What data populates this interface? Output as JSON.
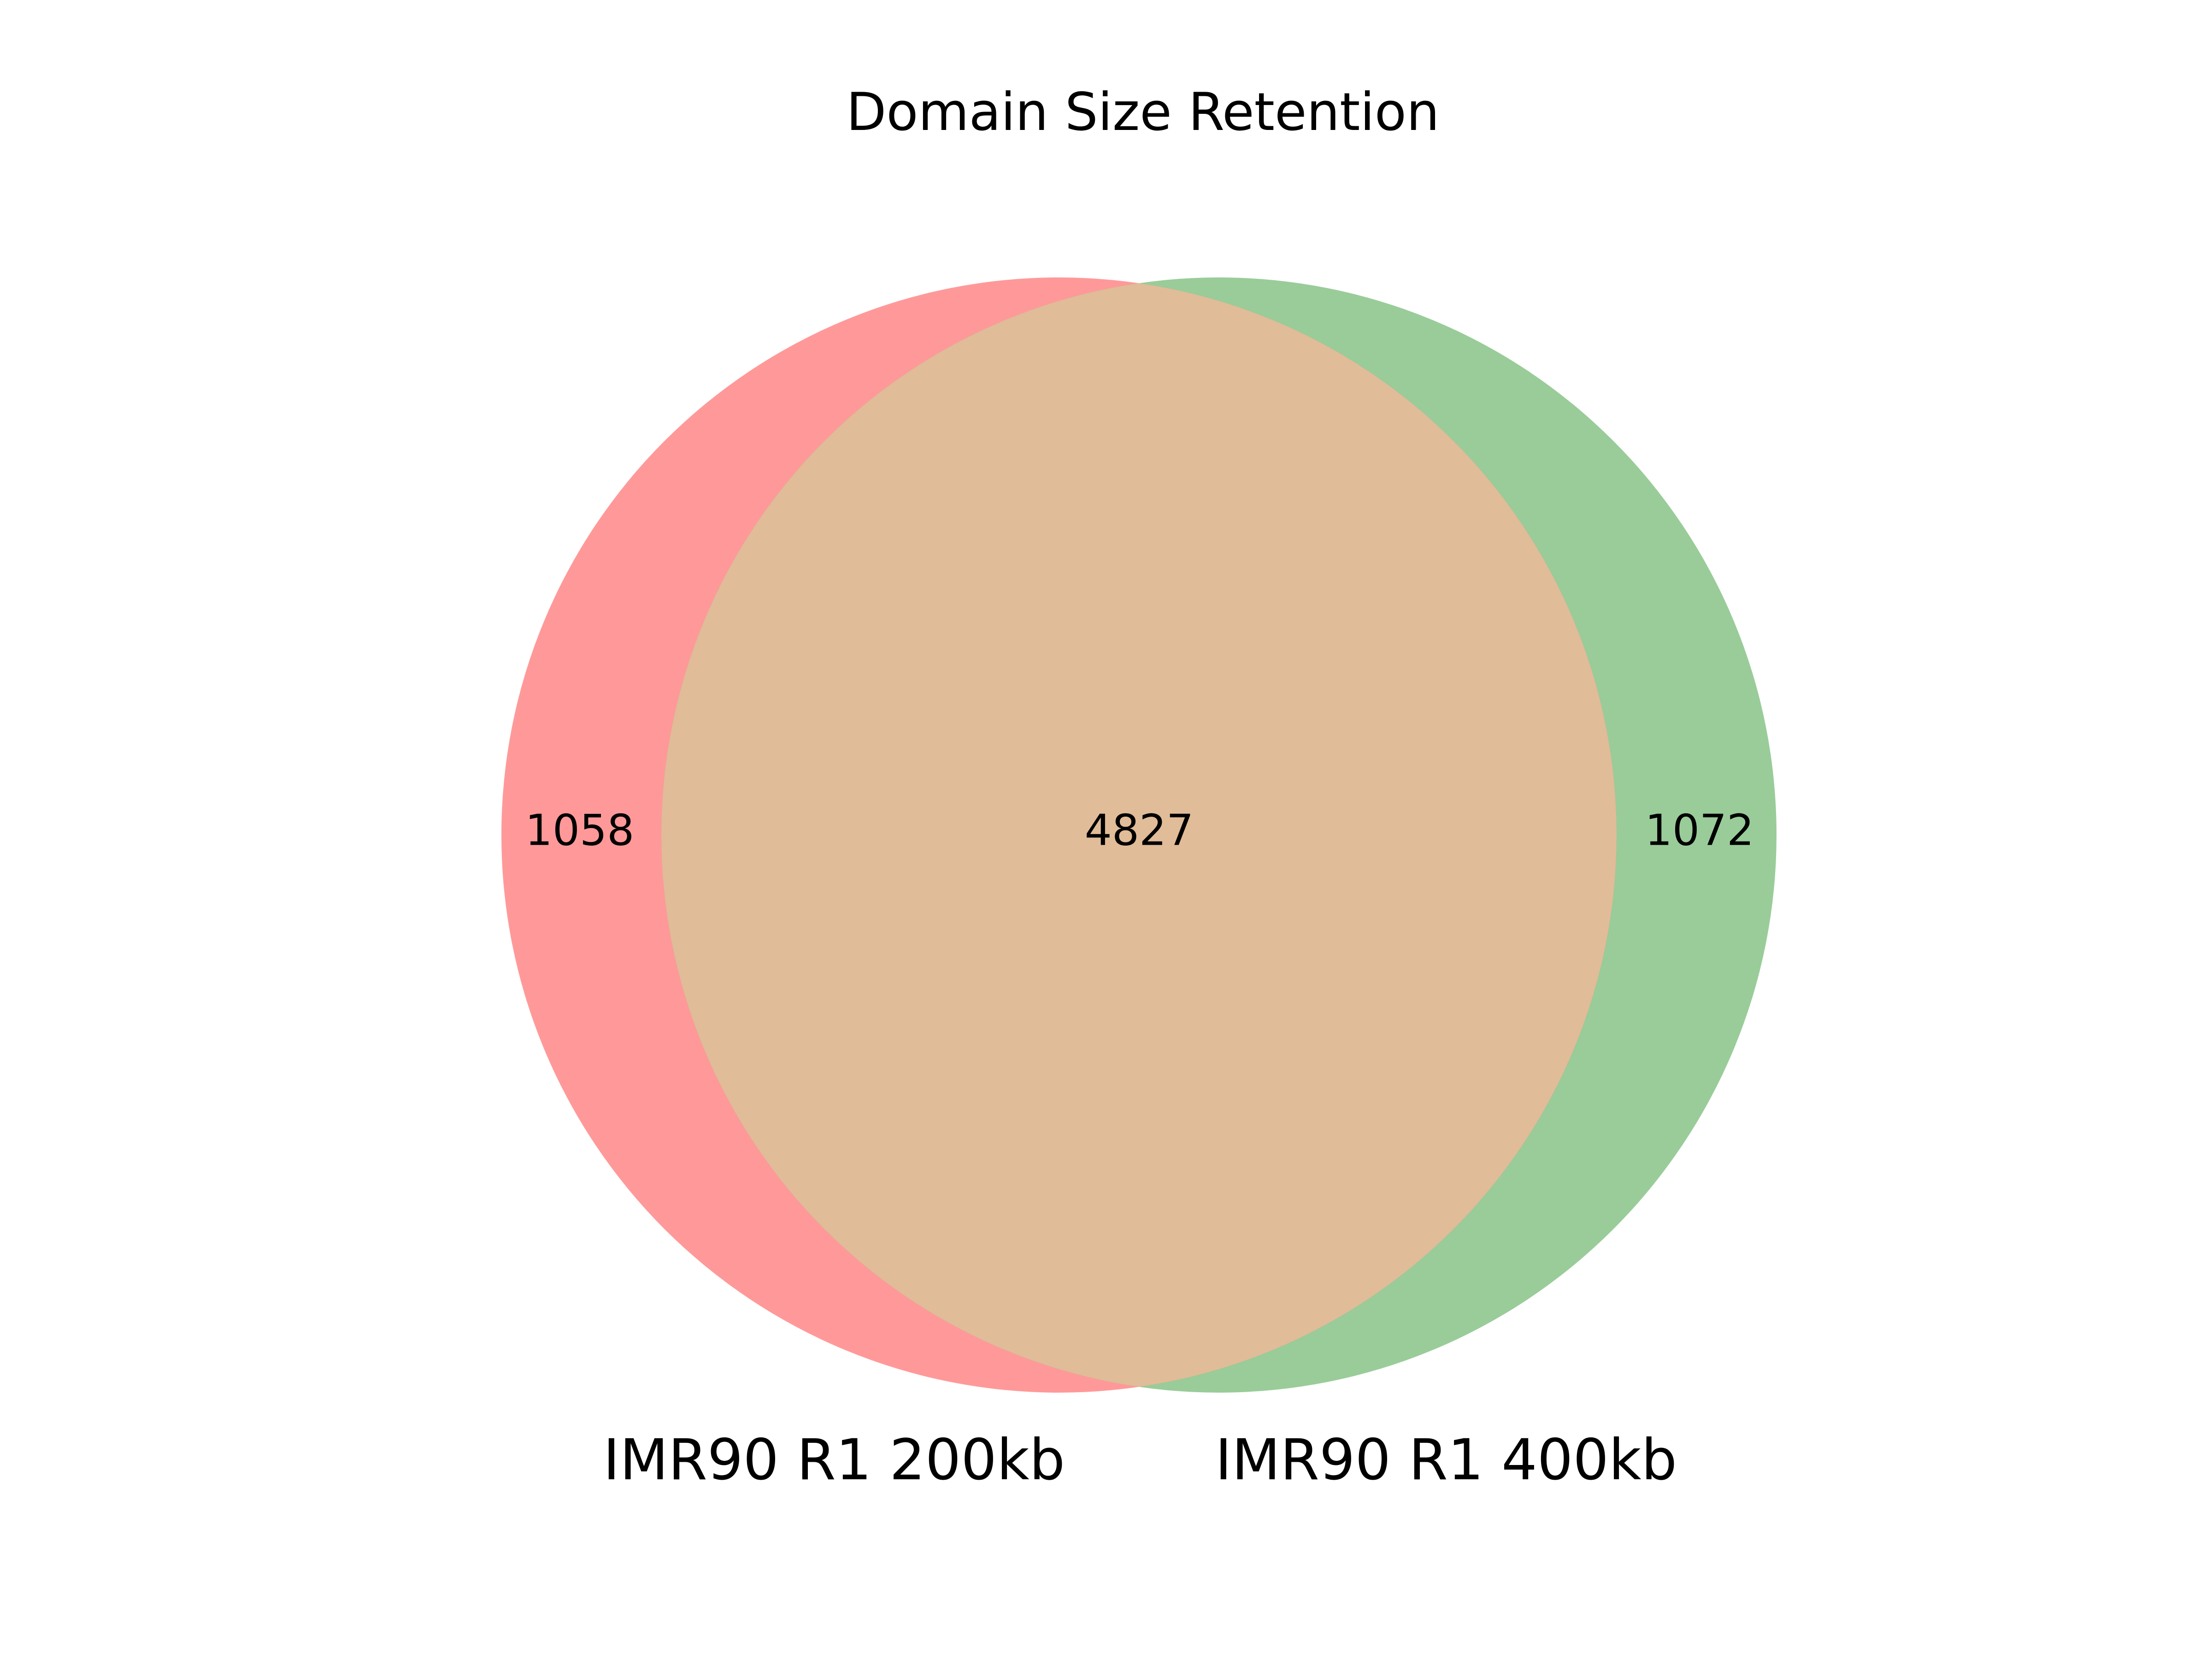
{
  "title": "Domain Size Retention",
  "sets": [
    {
      "name": "IMR90 R1 200kb",
      "color": "#ff0000",
      "opacity": 0.4
    },
    {
      "name": "IMR90 R1 400kb",
      "color": "#008000",
      "opacity": 0.4
    }
  ],
  "overlap_color": "#e0bc98",
  "counts": {
    "only_a": "1058",
    "both": "4827",
    "only_b": "1072"
  },
  "chart_data": {
    "type": "venn",
    "title": "Domain Size Retention",
    "set_labels": [
      "IMR90 R1 200kb",
      "IMR90 R1 400kb"
    ],
    "subsets": {
      "10": 1058,
      "01": 1072,
      "11": 4827
    }
  }
}
